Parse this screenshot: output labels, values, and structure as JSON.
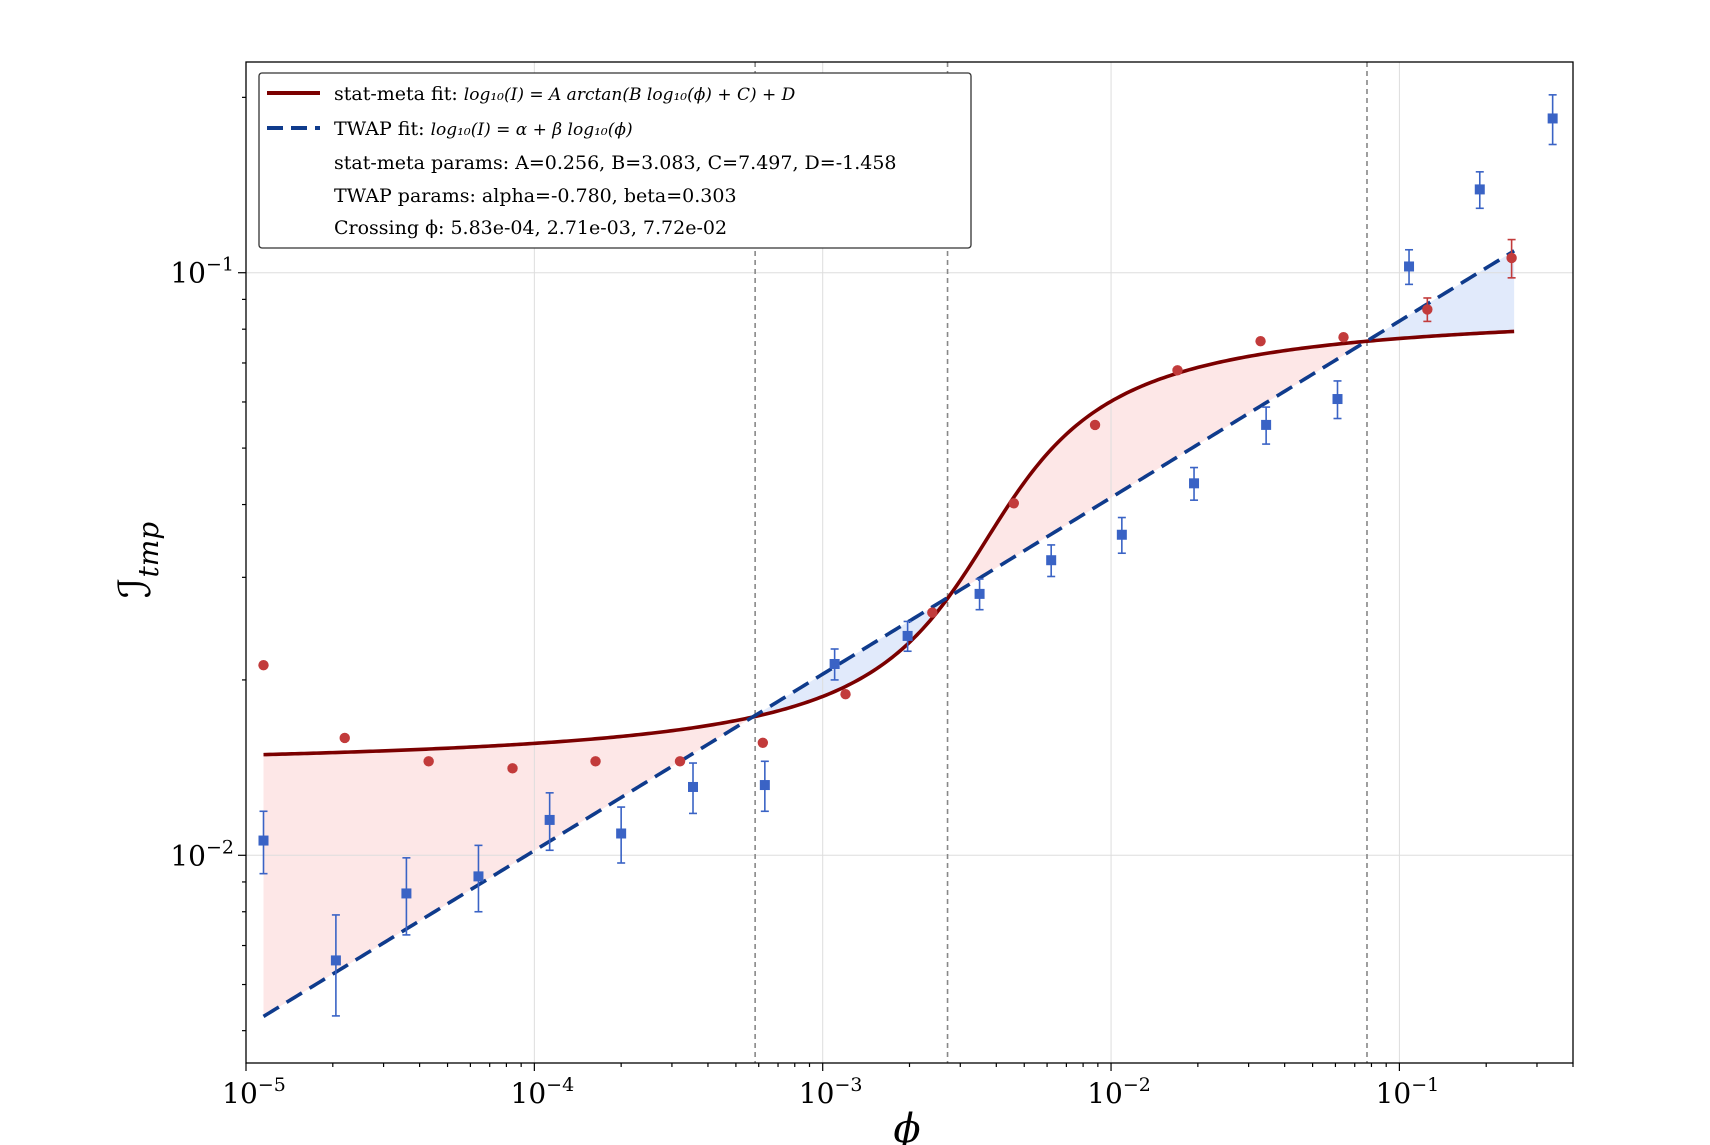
{
  "chart_data": {
    "type": "scatter",
    "xlabel": "ϕ",
    "ylabel": "ℐ",
    "ylabel_sub": "tmp",
    "x_scale": "log",
    "y_scale": "log",
    "xlim": [
      1e-05,
      0.4
    ],
    "ylim": [
      0.0044,
      0.23
    ],
    "grid": true,
    "legend_position": "upper-left",
    "x_ticks": [
      {
        "value": 1e-05,
        "base": "10",
        "exp": "−5"
      },
      {
        "value": 0.0001,
        "base": "10",
        "exp": "−4"
      },
      {
        "value": 0.001,
        "base": "10",
        "exp": "−3"
      },
      {
        "value": 0.01,
        "base": "10",
        "exp": "−2"
      },
      {
        "value": 0.1,
        "base": "10",
        "exp": "−1"
      }
    ],
    "y_ticks": [
      {
        "value": 0.01,
        "base": "10",
        "exp": "−2"
      },
      {
        "value": 0.1,
        "base": "10",
        "exp": "−1"
      }
    ],
    "legend": {
      "statmeta_prefix": "stat-meta fit: ",
      "statmeta_formula": "log₁₀(I) = A arctan(B log₁₀(ϕ) + C) + D",
      "twap_prefix": "TWAP fit: ",
      "twap_formula": "log₁₀(I) = α + β log₁₀(ϕ)",
      "statmeta_params": "stat-meta params: A=0.256, B=3.083, C=7.497, D=-1.458",
      "twap_params": "TWAP params: alpha=-0.780, beta=0.303",
      "crossing": "Crossing ϕ: 5.83e-04, 2.71e-03, 7.72e-02"
    },
    "fit_params": {
      "statmeta": {
        "A": 0.256,
        "B": 3.083,
        "C": 7.497,
        "D": -1.458
      },
      "twap": {
        "alpha": -0.78,
        "beta": 0.303
      }
    },
    "crossings": [
      0.000583,
      0.00271,
      0.0772
    ],
    "fit_range": [
      1.15e-05,
      0.25
    ],
    "colors": {
      "statmeta_line": "#7b0000",
      "twap_line": "#0f3b8c",
      "statmeta_points": "#c23b3b",
      "twap_points": "#3a63c5",
      "fill_statmeta_above": "#fde3e3",
      "fill_twap_above": "#dce6fa",
      "crossing_line": "#888888"
    },
    "series": [
      {
        "marker": "circle",
        "points": [
          {
            "x": 1.15e-05,
            "y": 0.0212
          },
          {
            "x": 2.2e-05,
            "y": 0.0159
          },
          {
            "x": 4.3e-05,
            "y": 0.0145
          },
          {
            "x": 8.4e-05,
            "y": 0.0141
          },
          {
            "x": 0.000163,
            "y": 0.0145
          },
          {
            "x": 0.00032,
            "y": 0.0145
          },
          {
            "x": 0.00062,
            "y": 0.0156
          },
          {
            "x": 0.0012,
            "y": 0.0189
          },
          {
            "x": 0.0024,
            "y": 0.0261
          },
          {
            "x": 0.0046,
            "y": 0.0402
          },
          {
            "x": 0.0088,
            "y": 0.0548
          },
          {
            "x": 0.017,
            "y": 0.068
          },
          {
            "x": 0.033,
            "y": 0.0763
          },
          {
            "x": 0.064,
            "y": 0.0775
          },
          {
            "x": 0.125,
            "y": 0.0865,
            "err": 0.004
          },
          {
            "x": 0.245,
            "y": 0.106,
            "err": 0.008
          }
        ]
      },
      {
        "marker": "square",
        "points": [
          {
            "x": 1.15e-05,
            "y": 0.0106,
            "err": 0.0013
          },
          {
            "x": 2.05e-05,
            "y": 0.0066,
            "err": 0.0013
          },
          {
            "x": 3.6e-05,
            "y": 0.0086,
            "err": 0.0013
          },
          {
            "x": 6.4e-05,
            "y": 0.0092,
            "err": 0.0012
          },
          {
            "x": 0.000113,
            "y": 0.0115,
            "err": 0.0013
          },
          {
            "x": 0.0002,
            "y": 0.0109,
            "err": 0.0012
          },
          {
            "x": 0.000355,
            "y": 0.0131,
            "err": 0.0013
          },
          {
            "x": 0.00063,
            "y": 0.0132,
            "err": 0.0013
          },
          {
            "x": 0.0011,
            "y": 0.0213,
            "err": 0.0013
          },
          {
            "x": 0.00197,
            "y": 0.0238,
            "err": 0.0014
          },
          {
            "x": 0.0035,
            "y": 0.0281,
            "err": 0.0017
          },
          {
            "x": 0.0062,
            "y": 0.0321,
            "err": 0.002
          },
          {
            "x": 0.0109,
            "y": 0.0355,
            "err": 0.0025
          },
          {
            "x": 0.0194,
            "y": 0.0435,
            "err": 0.0028
          },
          {
            "x": 0.0345,
            "y": 0.0548,
            "err": 0.004
          },
          {
            "x": 0.061,
            "y": 0.0607,
            "err": 0.0045
          },
          {
            "x": 0.108,
            "y": 0.1025,
            "err": 0.007
          },
          {
            "x": 0.19,
            "y": 0.139,
            "err": 0.01
          },
          {
            "x": 0.34,
            "y": 0.184,
            "err": 0.018
          }
        ]
      }
    ]
  }
}
